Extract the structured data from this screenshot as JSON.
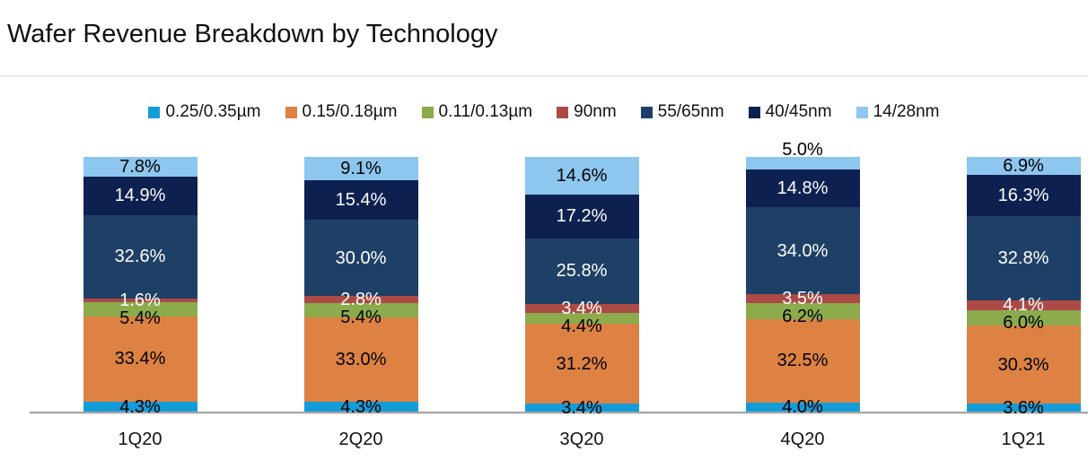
{
  "title": "Wafer Revenue Breakdown by Technology",
  "chart_data": {
    "type": "bar",
    "stacked": true,
    "orientation": "vertical",
    "title": "Wafer Revenue Breakdown by Technology",
    "xlabel": "",
    "ylabel": "",
    "ylim": [
      0,
      100
    ],
    "grid": false,
    "legend_position": "top",
    "value_suffix": "%",
    "categories": [
      "1Q20",
      "2Q20",
      "3Q20",
      "4Q20",
      "1Q21"
    ],
    "series": [
      {
        "name": "0.25/0.35µm",
        "color": "#149CD8",
        "label_color": "#000000",
        "values": [
          4.3,
          4.3,
          3.4,
          4.0,
          3.6
        ]
      },
      {
        "name": "0.15/0.18µm",
        "color": "#DD8243",
        "label_color": "#000000",
        "values": [
          33.4,
          33.0,
          31.2,
          32.5,
          30.3
        ]
      },
      {
        "name": "0.11/0.13µm",
        "color": "#8BAB4D",
        "label_color": "#000000",
        "values": [
          5.4,
          5.4,
          4.4,
          6.2,
          6.0
        ]
      },
      {
        "name": "90nm",
        "color": "#AC4A45",
        "label_color": "#FFFFFF",
        "values": [
          1.6,
          2.8,
          3.4,
          3.5,
          4.1
        ]
      },
      {
        "name": "55/65nm",
        "color": "#1F4066",
        "label_color": "#FFFFFF",
        "values": [
          32.6,
          30.0,
          25.8,
          34.0,
          32.8
        ]
      },
      {
        "name": "40/45nm",
        "color": "#0D2050",
        "label_color": "#FFFFFF",
        "values": [
          14.9,
          15.4,
          17.2,
          14.8,
          16.3
        ]
      },
      {
        "name": "14/28nm",
        "color": "#8DC6EE",
        "label_color": "#000000",
        "values": [
          7.8,
          9.1,
          14.6,
          5.0,
          6.9
        ]
      }
    ]
  }
}
